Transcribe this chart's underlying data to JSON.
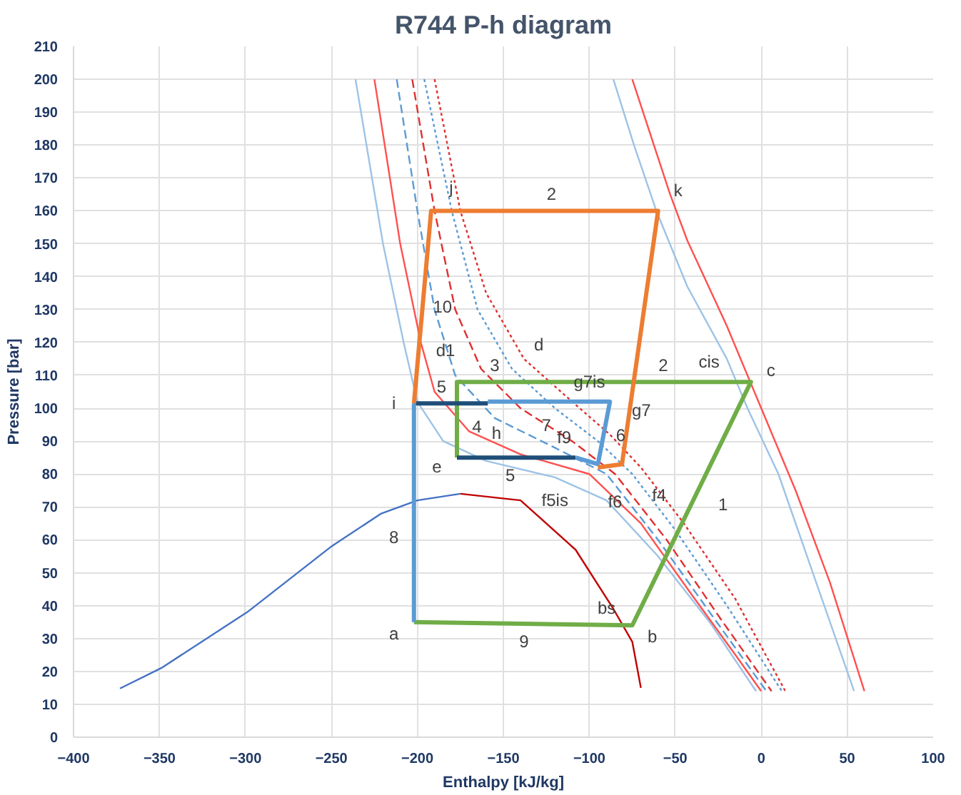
{
  "chart_data": {
    "type": "line",
    "title": "R744 P-h diagram",
    "xlabel": "Enthalpy [kJ/kg]",
    "ylabel": "Pressure [bar]",
    "xlim": [
      -400,
      100
    ],
    "ylim": [
      0,
      210
    ],
    "xticks": [
      -400,
      -350,
      -300,
      -250,
      -200,
      -150,
      -100,
      -50,
      0,
      50,
      100
    ],
    "yticks": [
      0,
      10,
      20,
      30,
      40,
      50,
      60,
      70,
      80,
      90,
      100,
      110,
      120,
      130,
      140,
      150,
      160,
      170,
      180,
      190,
      200,
      210
    ],
    "grid": true,
    "marker": "none",
    "series": [
      {
        "color": "#4472c4",
        "x": [
          -373,
          -349,
          -299,
          -250,
          -221,
          -200,
          -175
        ],
        "values": [
          14.8,
          21,
          38,
          58,
          68,
          72,
          74
        ]
      },
      {
        "color": "#c00000",
        "x": [
          -175,
          -140,
          -108,
          -86,
          -75,
          -70
        ],
        "values": [
          74,
          72,
          57,
          39,
          29,
          15
        ]
      },
      {
        "color": "#9dc3e6",
        "x": [
          -236,
          -220,
          -208,
          -200,
          -185,
          -160,
          -120,
          -90,
          -60,
          -30,
          -3
        ],
        "values": [
          200,
          150,
          120,
          102,
          90,
          84,
          79,
          72,
          55,
          35,
          14
        ]
      },
      {
        "color": "#ff5050",
        "x": [
          -225,
          -210,
          -198,
          -190,
          -170,
          -140,
          -100,
          -70,
          -40,
          -15,
          0
        ],
        "values": [
          200,
          150,
          120,
          105,
          93,
          86,
          80,
          65,
          43,
          25,
          14
        ]
      },
      {
        "color": "#5b9bd5",
        "line_style": "dashed",
        "x": [
          -212,
          -200,
          -190,
          -178,
          -155,
          -120,
          -90,
          -60,
          -30,
          3
        ],
        "values": [
          200,
          160,
          130,
          110,
          97,
          88,
          80,
          60,
          38,
          14
        ]
      },
      {
        "color": "#e03030",
        "line_style": "dashed",
        "x": [
          -203,
          -190,
          -178,
          -163,
          -140,
          -110,
          -85,
          -55,
          -25,
          6
        ],
        "values": [
          200,
          160,
          130,
          112,
          100,
          90,
          80,
          60,
          37,
          14
        ]
      },
      {
        "color": "#5b9bd5",
        "line_style": "dotted",
        "x": [
          -196,
          -180,
          -165,
          -145,
          -120,
          -95,
          -75,
          -50,
          -20,
          12
        ],
        "values": [
          200,
          160,
          130,
          112,
          100,
          90,
          80,
          63,
          40,
          14
        ]
      },
      {
        "color": "#e03030",
        "line_style": "dotted",
        "x": [
          -190,
          -175,
          -160,
          -138,
          -110,
          -88,
          -70,
          -45,
          -15,
          14
        ],
        "values": [
          200,
          160,
          135,
          115,
          102,
          92,
          82,
          65,
          42,
          14
        ]
      },
      {
        "color": "#9dc3e6",
        "x": [
          -86,
          -74,
          -61,
          -43,
          -20,
          -8,
          10,
          30,
          54
        ],
        "values": [
          200,
          180,
          160,
          137,
          115,
          100,
          80,
          50,
          14
        ]
      },
      {
        "color": "#ff5050",
        "x": [
          -75,
          -53,
          -43,
          -20,
          0,
          20,
          40,
          60
        ],
        "values": [
          200,
          165,
          151,
          125,
          100,
          75,
          47,
          14
        ]
      },
      {
        "color": "#70ad47",
        "x": [
          -202,
          -75,
          -6,
          -177,
          -177
        ],
        "values": [
          35,
          34,
          108,
          108,
          85
        ]
      },
      {
        "color": "#1f4e79",
        "x": [
          -177,
          -108
        ],
        "values": [
          85,
          85
        ]
      },
      {
        "color": "#5b9bd5",
        "x": [
          -108,
          -95,
          -88,
          -159
        ],
        "values": [
          85,
          83,
          102,
          102
        ]
      },
      {
        "color": "#1f4e79",
        "x": [
          -159,
          -202
        ],
        "values": [
          101.5,
          101.5
        ]
      },
      {
        "color": "#5b9bd5",
        "x": [
          -202,
          -202
        ],
        "values": [
          101.5,
          35
        ]
      },
      {
        "color": "#ed7d31",
        "x": [
          -202,
          -192,
          -60,
          -81,
          -95
        ],
        "values": [
          101.5,
          160,
          160,
          83,
          82
        ]
      }
    ],
    "annotations": [
      {
        "text": "a",
        "x": -202,
        "y": 35
      },
      {
        "text": "b",
        "x": -75,
        "y": 34
      },
      {
        "text": "bs",
        "x": -75,
        "y": 34
      },
      {
        "text": "c",
        "x": -6,
        "y": 108
      },
      {
        "text": "cis",
        "x": -27,
        "y": 108
      },
      {
        "text": "d",
        "x": -126,
        "y": 108
      },
      {
        "text": "d1",
        "x": -177,
        "y": 108
      },
      {
        "text": "e",
        "x": -177,
        "y": 85
      },
      {
        "text": "f4",
        "x": -81,
        "y": 83
      },
      {
        "text": "f5is",
        "x": -120,
        "y": 79
      },
      {
        "text": "f6",
        "x": -95,
        "y": 82
      },
      {
        "text": "f9",
        "x": -108,
        "y": 85
      },
      {
        "text": "g7is",
        "x": -100,
        "y": 102
      },
      {
        "text": "g7",
        "x": -88,
        "y": 102
      },
      {
        "text": "h",
        "x": -159,
        "y": 102
      },
      {
        "text": "i",
        "x": -202,
        "y": 101.5
      },
      {
        "text": "j",
        "x": -192,
        "y": 160
      },
      {
        "text": "k",
        "x": -60,
        "y": 160
      },
      {
        "text": "1",
        "x": -40.5,
        "y": 71
      },
      {
        "text": "2",
        "x": -122,
        "y": 160
      },
      {
        "text": "2",
        "x": -57,
        "y": 108
      },
      {
        "text": "3",
        "x": -155,
        "y": 108
      },
      {
        "text": "4",
        "x": -177,
        "y": 94.5
      },
      {
        "text": "5",
        "x": -186,
        "y": 101.5
      },
      {
        "text": "5",
        "x": -146,
        "y": 85
      },
      {
        "text": "6",
        "x": -91.7,
        "y": 92
      },
      {
        "text": "7",
        "x": -125,
        "y": 102
      },
      {
        "text": "8",
        "x": -202,
        "y": 61
      },
      {
        "text": "9",
        "x": -138,
        "y": 34.5
      },
      {
        "text": "10",
        "x": -197,
        "y": 131
      }
    ]
  }
}
